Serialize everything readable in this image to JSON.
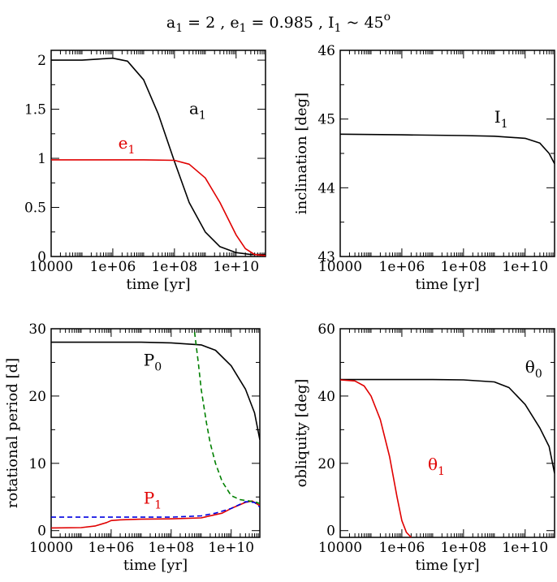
{
  "title": {
    "a": "a",
    "a_sub": "1",
    "a_val": " = 2  ,  e",
    "e_sub": "1",
    "e_val": " = 0.985  ,  I",
    "i_sub": "1",
    "i_val": " ~ 45",
    "i_sup": "o"
  },
  "colors": {
    "black": "#000000",
    "red": "#e00000",
    "green": "#008000",
    "blue": "#0000e0"
  },
  "chart_data": [
    {
      "id": "panel-a-e",
      "type": "line",
      "xscale": "log",
      "xlim": [
        10000,
        90000000000
      ],
      "xticks": [
        10000,
        1000000,
        100000000,
        10000000000
      ],
      "xtick_labels": [
        "10000",
        "1e+06",
        "1e+08",
        "1e+10"
      ],
      "ylim": [
        0,
        2.1
      ],
      "yticks": [
        0,
        0.5,
        1,
        1.5,
        2
      ],
      "ytick_labels": [
        "0",
        "0.5",
        "1",
        "1.5",
        "2"
      ],
      "xlabel": "time  [yr]",
      "ylabel": "",
      "series": [
        {
          "name": "a1",
          "color": "#000000",
          "dashed": false,
          "x": [
            10000,
            100000,
            300000,
            1000000,
            3000000,
            10000000,
            30000000,
            100000000,
            300000000,
            1000000000,
            3000000000,
            10000000000,
            30000000000,
            90000000000
          ],
          "y": [
            2.0,
            2.0,
            2.01,
            2.02,
            1.99,
            1.8,
            1.45,
            0.97,
            0.55,
            0.25,
            0.1,
            0.04,
            0.02,
            0.02
          ]
        },
        {
          "name": "e1",
          "color": "#e00000",
          "dashed": false,
          "x": [
            10000,
            1000000,
            10000000,
            100000000,
            300000000,
            1000000000,
            3000000000,
            10000000000,
            20000000000,
            40000000000,
            90000000000
          ],
          "y": [
            0.985,
            0.985,
            0.985,
            0.98,
            0.94,
            0.8,
            0.55,
            0.22,
            0.08,
            0.02,
            0.01
          ]
        }
      ],
      "annotations": [
        {
          "text": "a",
          "sub": "1",
          "color": "#000000",
          "x": 300000000,
          "y": 1.45
        },
        {
          "text": "e",
          "sub": "1",
          "color": "#e00000",
          "x": 1500000,
          "y": 1.1
        }
      ]
    },
    {
      "id": "panel-inclination",
      "type": "line",
      "xscale": "log",
      "xlim": [
        10000,
        90000000000
      ],
      "xticks": [
        10000,
        1000000,
        100000000,
        10000000000
      ],
      "xtick_labels": [
        "10000",
        "1e+06",
        "1e+08",
        "1e+10"
      ],
      "ylim": [
        43,
        46
      ],
      "yticks": [
        43,
        44,
        45,
        46
      ],
      "ytick_labels": [
        "43",
        "44",
        "45",
        "46"
      ],
      "xlabel": "time  [yr]",
      "ylabel": "inclination  [deg]",
      "series": [
        {
          "name": "I1",
          "color": "#000000",
          "dashed": false,
          "x": [
            10000,
            1000000,
            100000000,
            1000000000,
            10000000000,
            30000000000,
            60000000000,
            90000000000
          ],
          "y": [
            44.78,
            44.77,
            44.76,
            44.75,
            44.72,
            44.65,
            44.5,
            44.35
          ]
        }
      ],
      "annotations": [
        {
          "text": "I",
          "sub": "1",
          "color": "#000000",
          "x": 1000000000,
          "y": 44.95
        }
      ]
    },
    {
      "id": "panel-period",
      "type": "line",
      "xscale": "log",
      "xlim": [
        10000,
        90000000000
      ],
      "xticks": [
        10000,
        1000000,
        100000000,
        10000000000
      ],
      "xtick_labels": [
        "10000",
        "1e+06",
        "1e+08",
        "1e+10"
      ],
      "ylim": [
        -1,
        30
      ],
      "yticks": [
        0,
        10,
        20,
        30
      ],
      "ytick_labels": [
        "0",
        "10",
        "20",
        "30"
      ],
      "xlabel": "time  [yr]",
      "ylabel": "rotational period [d]",
      "series": [
        {
          "name": "P0",
          "color": "#000000",
          "dashed": false,
          "x": [
            10000,
            10000000,
            100000000,
            1000000000,
            3000000000,
            10000000000,
            30000000000,
            60000000000,
            90000000000
          ],
          "y": [
            28.0,
            28.0,
            27.9,
            27.6,
            26.8,
            24.5,
            21.0,
            17.5,
            13.5
          ]
        },
        {
          "name": "P1",
          "color": "#e00000",
          "dashed": false,
          "x": [
            10000,
            100000,
            300000,
            700000,
            1000000,
            2000000,
            10000000,
            100000000,
            1000000000,
            5000000000,
            10000000000,
            30000000000,
            50000000000,
            90000000000
          ],
          "y": [
            0.4,
            0.45,
            0.7,
            1.2,
            1.5,
            1.6,
            1.7,
            1.75,
            1.9,
            2.6,
            3.3,
            4.2,
            4.4,
            3.7
          ]
        },
        {
          "name": "green-dashed",
          "color": "#008000",
          "dashed": true,
          "x": [
            600000000,
            800000000,
            1000000000,
            1500000000,
            2000000000,
            3000000000,
            5000000000,
            10000000000,
            20000000000,
            40000000000,
            70000000000,
            90000000000
          ],
          "y": [
            29.5,
            25.0,
            21.0,
            16.0,
            13.0,
            10.0,
            7.3,
            5.2,
            4.6,
            4.4,
            4.2,
            4.0
          ]
        },
        {
          "name": "blue-dashed",
          "color": "#0000e0",
          "dashed": true,
          "x": [
            10000,
            100000000,
            1000000000,
            3000000000,
            10000000000,
            30000000000,
            60000000000,
            90000000000
          ],
          "y": [
            2.0,
            2.0,
            2.2,
            2.6,
            3.3,
            4.3,
            4.2,
            3.5
          ]
        }
      ],
      "annotations": [
        {
          "text": "P",
          "sub": "0",
          "color": "#000000",
          "x": 12000000,
          "y": 24.5
        },
        {
          "text": "P",
          "sub": "1",
          "color": "#e00000",
          "x": 12000000,
          "y": 4.0
        }
      ]
    },
    {
      "id": "panel-obliquity",
      "type": "line",
      "xscale": "log",
      "xlim": [
        10000,
        90000000000
      ],
      "xticks": [
        10000,
        1000000,
        100000000,
        10000000000
      ],
      "xtick_labels": [
        "10000",
        "1e+06",
        "1e+08",
        "1e+10"
      ],
      "ylim": [
        -2,
        60
      ],
      "yticks": [
        0,
        20,
        40,
        60
      ],
      "ytick_labels": [
        "0",
        "20",
        "40",
        "60"
      ],
      "xlabel": "time  [yr]",
      "ylabel": "obliquity  [deg]",
      "series": [
        {
          "name": "theta0",
          "color": "#000000",
          "dashed": false,
          "x": [
            10000,
            10000000,
            100000000,
            1000000000,
            3000000000,
            10000000000,
            30000000000,
            60000000000,
            90000000000
          ],
          "y": [
            44.9,
            44.9,
            44.8,
            44.2,
            42.5,
            37.5,
            30.5,
            25.0,
            17.0
          ]
        },
        {
          "name": "theta1",
          "color": "#e00000",
          "dashed": false,
          "x": [
            10000,
            30000,
            60000,
            100000,
            200000,
            400000,
            700000,
            1000000,
            1400000,
            2000000
          ],
          "y": [
            44.8,
            44.5,
            43.0,
            40.0,
            33.0,
            22.0,
            10.0,
            3.0,
            -0.5,
            -2.0
          ]
        }
      ],
      "annotations": [
        {
          "text": "θ",
          "sub": "0",
          "color": "#000000",
          "x": 10000000000,
          "y": 47
        },
        {
          "text": "θ",
          "sub": "1",
          "color": "#e00000",
          "x": 7000000,
          "y": 18
        }
      ]
    }
  ]
}
